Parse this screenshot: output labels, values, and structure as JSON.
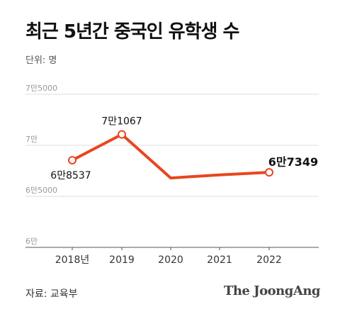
{
  "header": {
    "title": "최근 5년간 중국인 유학생 수",
    "unit": "단위: 명"
  },
  "footer": {
    "source": "자료: 교육부",
    "brand": "The JoongAng"
  },
  "colors": {
    "line": "#e8461e",
    "grid": "#dddddd",
    "axis": "#555555",
    "tick_text": "#999999"
  },
  "chart_data": {
    "type": "line",
    "title": "최근 5년간 중국인 유학생 수",
    "ylabel": "단위: 명",
    "xlabel": "",
    "categories": [
      "2018년",
      "2019",
      "2020",
      "2021",
      "2022"
    ],
    "series": [
      {
        "values": [
          68537,
          71067,
          66800,
          67100,
          67349
        ]
      }
    ],
    "data_labels": [
      {
        "index": 0,
        "text": "6만8537"
      },
      {
        "index": 1,
        "text": "7만1067"
      },
      {
        "index": 4,
        "text": "6만7349"
      }
    ],
    "y_ticks": [
      {
        "value": 60000,
        "label": "6만"
      },
      {
        "value": 65000,
        "label": "6만5000"
      },
      {
        "value": 70000,
        "label": "7만"
      },
      {
        "value": 75000,
        "label": "7만5000"
      }
    ],
    "ylim": [
      60000,
      75000
    ],
    "grid": true
  }
}
